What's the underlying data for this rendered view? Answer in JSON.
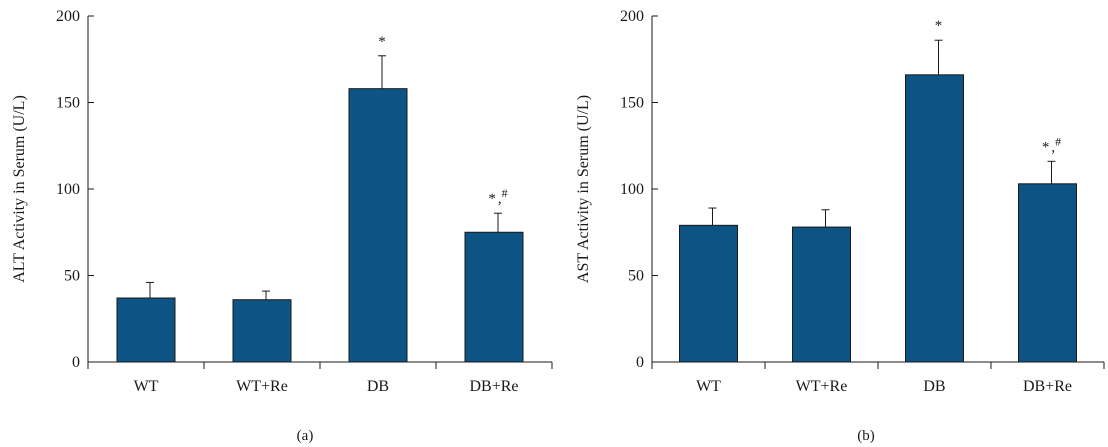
{
  "colors": {
    "bar": "#0d5384",
    "axis": "#1a1a1a"
  },
  "chart_data": [
    {
      "type": "bar",
      "panel_label": "(a)",
      "ylabel": "ALT Activity in Serum (U/L)",
      "xlabel": "",
      "categories": [
        "WT",
        "WT+Re",
        "DB",
        "DB+Re"
      ],
      "values": [
        37,
        36,
        158,
        75
      ],
      "errors": [
        9,
        5,
        19,
        11
      ],
      "annotations": [
        "",
        "",
        "*",
        "*,#"
      ],
      "ylim": [
        0,
        200
      ],
      "yticks": [
        0,
        50,
        100,
        150,
        200
      ]
    },
    {
      "type": "bar",
      "panel_label": "(b)",
      "ylabel": "AST Activity in Serum (U/L)",
      "xlabel": "",
      "categories": [
        "WT",
        "WT+Re",
        "DB",
        "DB+Re"
      ],
      "values": [
        79,
        78,
        166,
        103
      ],
      "errors": [
        10,
        10,
        20,
        13
      ],
      "annotations": [
        "",
        "",
        "*",
        "*,#"
      ],
      "ylim": [
        0,
        200
      ],
      "yticks": [
        0,
        50,
        100,
        150,
        200
      ]
    }
  ]
}
